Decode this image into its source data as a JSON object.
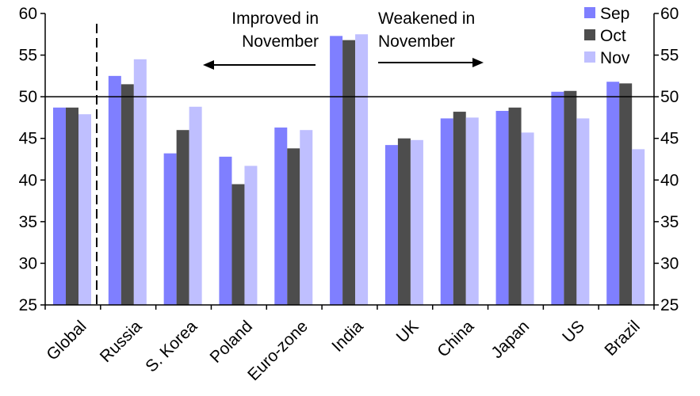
{
  "chart_data": {
    "type": "bar",
    "categories": [
      "Global",
      "Russia",
      "S. Korea",
      "Poland",
      "Euro-zone",
      "India",
      "UK",
      "China",
      "Japan",
      "US",
      "Brazil"
    ],
    "series": [
      {
        "name": "Sep",
        "color": "#7f7fff",
        "values": [
          48.7,
          52.5,
          43.2,
          42.8,
          46.3,
          57.3,
          44.2,
          47.4,
          48.3,
          50.6,
          51.8
        ]
      },
      {
        "name": "Oct",
        "color": "#4d4d4d",
        "values": [
          48.7,
          51.5,
          46.0,
          39.5,
          43.8,
          56.8,
          45.0,
          48.2,
          48.7,
          50.7,
          51.6
        ]
      },
      {
        "name": "Nov",
        "color": "#bfbfff",
        "values": [
          47.9,
          54.5,
          48.8,
          41.7,
          46.0,
          57.5,
          44.8,
          47.5,
          45.7,
          47.4,
          43.7
        ]
      }
    ],
    "ylim": [
      25,
      60
    ],
    "yticks": [
      25,
      30,
      35,
      40,
      45,
      50,
      55,
      60
    ],
    "reference_line": 50,
    "legend_position": "top-right",
    "annotations": {
      "improved": [
        "Improved in",
        "November"
      ],
      "weakened": [
        "Weakened in",
        "November"
      ]
    }
  }
}
